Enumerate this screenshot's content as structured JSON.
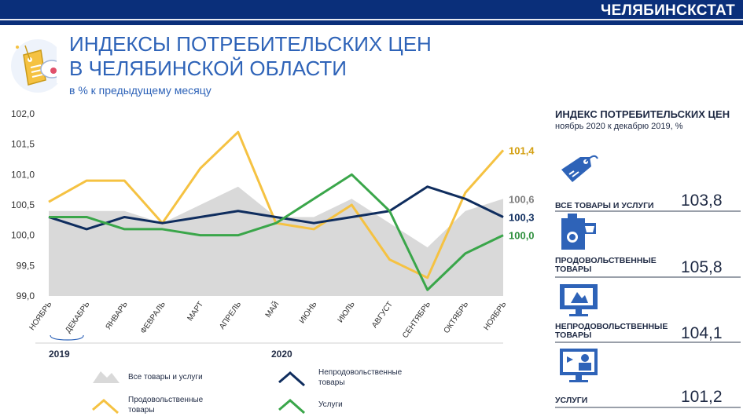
{
  "header": {
    "brand": "ЧЕЛЯБИНСКСТАТ"
  },
  "title_line1": "ИНДЕКСЫ ПОТРЕБИТЕЛЬСКИХ ЦЕН",
  "title_line2": "В ЧЕЛЯБИНСКОЙ ОБЛАСТИ",
  "subtitle": "в % к предыдущему месяцу",
  "chart_data": {
    "type": "line",
    "categories": [
      "НОЯБРЬ",
      "ДЕКАБРЬ",
      "ЯНВАРЬ",
      "ФЕВРАЛЬ",
      "МАРТ",
      "АПРЕЛЬ",
      "МАЙ",
      "ИЮНЬ",
      "ИЮЛЬ",
      "АВГУСТ",
      "СЕНТЯБРЬ",
      "ОКТЯБРЬ",
      "НОЯБРЬ"
    ],
    "year_labels": [
      "2019",
      "2020"
    ],
    "ylim": [
      99.0,
      102.0
    ],
    "yticks": [
      "99,0",
      "99,5",
      "100,0",
      "100,5",
      "101,0",
      "101,5",
      "102,0"
    ],
    "series": [
      {
        "name": "Все товары и услуги",
        "kind": "area",
        "color": "#d9d9d9",
        "values": [
          100.4,
          100.4,
          100.4,
          100.2,
          100.5,
          100.8,
          100.3,
          100.3,
          100.6,
          100.2,
          99.8,
          100.4,
          100.6
        ],
        "end_label": "100,6",
        "label_color": "#7f7f7f"
      },
      {
        "name": "Продовольственные товары",
        "kind": "line",
        "color": "#f5c242",
        "values": [
          100.55,
          100.9,
          100.9,
          100.2,
          101.1,
          101.7,
          100.2,
          100.1,
          100.5,
          99.6,
          99.3,
          100.7,
          101.4
        ],
        "end_label": "101,4",
        "label_color": "#d4a012"
      },
      {
        "name": "Непродовольственные товары",
        "kind": "line",
        "color": "#0f2d5e",
        "values": [
          100.3,
          100.1,
          100.3,
          100.2,
          100.3,
          100.4,
          100.3,
          100.2,
          100.3,
          100.4,
          100.8,
          100.6,
          100.3
        ],
        "end_label": "100,3",
        "label_color": "#0f2d5e"
      },
      {
        "name": "Услуги",
        "kind": "line",
        "color": "#3aa64a",
        "values": [
          100.3,
          100.3,
          100.1,
          100.1,
          100.0,
          100.0,
          100.2,
          100.6,
          101.0,
          100.4,
          99.1,
          99.7,
          100.0
        ],
        "end_label": "100,0",
        "label_color": "#2e8f3d"
      }
    ],
    "legend": [
      {
        "label": "Все товары и услуги",
        "shape": "area",
        "color": "#d9d9d9"
      },
      {
        "label": "Непродовольственные товары",
        "shape": "line",
        "color": "#0f2d5e"
      },
      {
        "label": "Продовольственные товары",
        "shape": "line",
        "color": "#f5c242"
      },
      {
        "label": "Услуги",
        "shape": "line",
        "color": "#3aa64a"
      }
    ],
    "grid": false
  },
  "right_panel": {
    "title": "ИНДЕКС ПОТРЕБИТЕЛЬСКИХ ЦЕН",
    "subtitle": "ноябрь 2020 к декабрю 2019, %",
    "items": [
      {
        "label": "ВСЕ ТОВАРЫ И УСЛУГИ",
        "value": "103,8",
        "icon": "price-tag-icon"
      },
      {
        "label": "ПРОДОВОЛЬСТВЕННЫЕ ТОВАРЫ",
        "value": "105,8",
        "icon": "grocery-bag-icon"
      },
      {
        "label": "НЕПРОДОВОЛЬСТВЕННЫЕ ТОВАРЫ",
        "value": "104,1",
        "icon": "tv-icon"
      },
      {
        "label": "УСЛУГИ",
        "value": "101,2",
        "icon": "services-monitor-icon"
      }
    ],
    "accent_icon_color": "#2e63b8"
  }
}
